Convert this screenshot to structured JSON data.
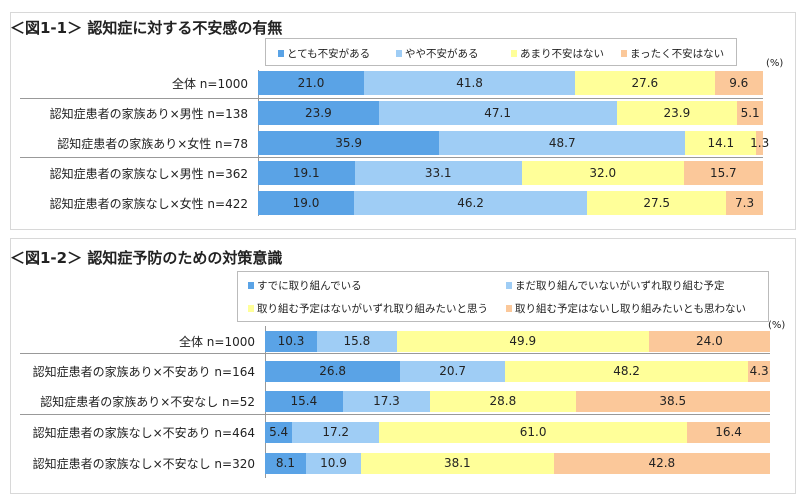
{
  "chart_data": [
    {
      "type": "bar",
      "orientation": "horizontal-stacked-100",
      "title": "＜図1-1＞ 認知症に対する不安感の有無",
      "unit_label": "(%)",
      "categories": [
        "全体 n=1000",
        "認知症患者の家族あり×男性 n=138",
        "認知症患者の家族あり×女性 n=78",
        "認知症患者の家族なし×男性 n=362",
        "認知症患者の家族なし×女性 n=422"
      ],
      "series": [
        {
          "name": "とても不安がある",
          "color": "#5aa3e6",
          "values": [
            21.0,
            23.9,
            35.9,
            19.1,
            19.0
          ]
        },
        {
          "name": "やや不安がある",
          "color": "#9fcdf5",
          "values": [
            41.8,
            47.1,
            48.7,
            33.1,
            46.2
          ]
        },
        {
          "name": "あまり不安はない",
          "color": "#ffff99",
          "values": [
            27.6,
            23.9,
            14.1,
            32.0,
            27.5
          ]
        },
        {
          "name": "まったく不安はない",
          "color": "#fbc89a",
          "values": [
            9.6,
            5.1,
            1.3,
            15.7,
            7.3
          ]
        }
      ],
      "legend_position": "top"
    },
    {
      "type": "bar",
      "orientation": "horizontal-stacked-100",
      "title": "＜図1-2＞ 認知症予防のための対策意識",
      "unit_label": "(%)",
      "categories": [
        "全体 n=1000",
        "認知症患者の家族あり×不安あり n=164",
        "認知症患者の家族あり×不安なし n=52",
        "認知症患者の家族なし×不安あり n=464",
        "認知症患者の家族なし×不安なし n=320"
      ],
      "series": [
        {
          "name": "すでに取り組んでいる",
          "color": "#5aa3e6",
          "values": [
            10.3,
            26.8,
            15.4,
            5.4,
            8.1
          ]
        },
        {
          "name": "まだ取り組んでいないがいずれ取り組む予定",
          "color": "#9fcdf5",
          "values": [
            15.8,
            20.7,
            17.3,
            17.2,
            10.9
          ]
        },
        {
          "name": "取り組む予定はないがいずれ取り組みたいと思う",
          "color": "#ffff99",
          "values": [
            49.9,
            48.2,
            28.8,
            61.0,
            38.1
          ]
        },
        {
          "name": "取り組む予定はないし取り組みたいとも思わない",
          "color": "#fbc89a",
          "values": [
            24.0,
            4.3,
            38.5,
            16.4,
            42.8
          ]
        }
      ],
      "legend_position": "top"
    }
  ]
}
